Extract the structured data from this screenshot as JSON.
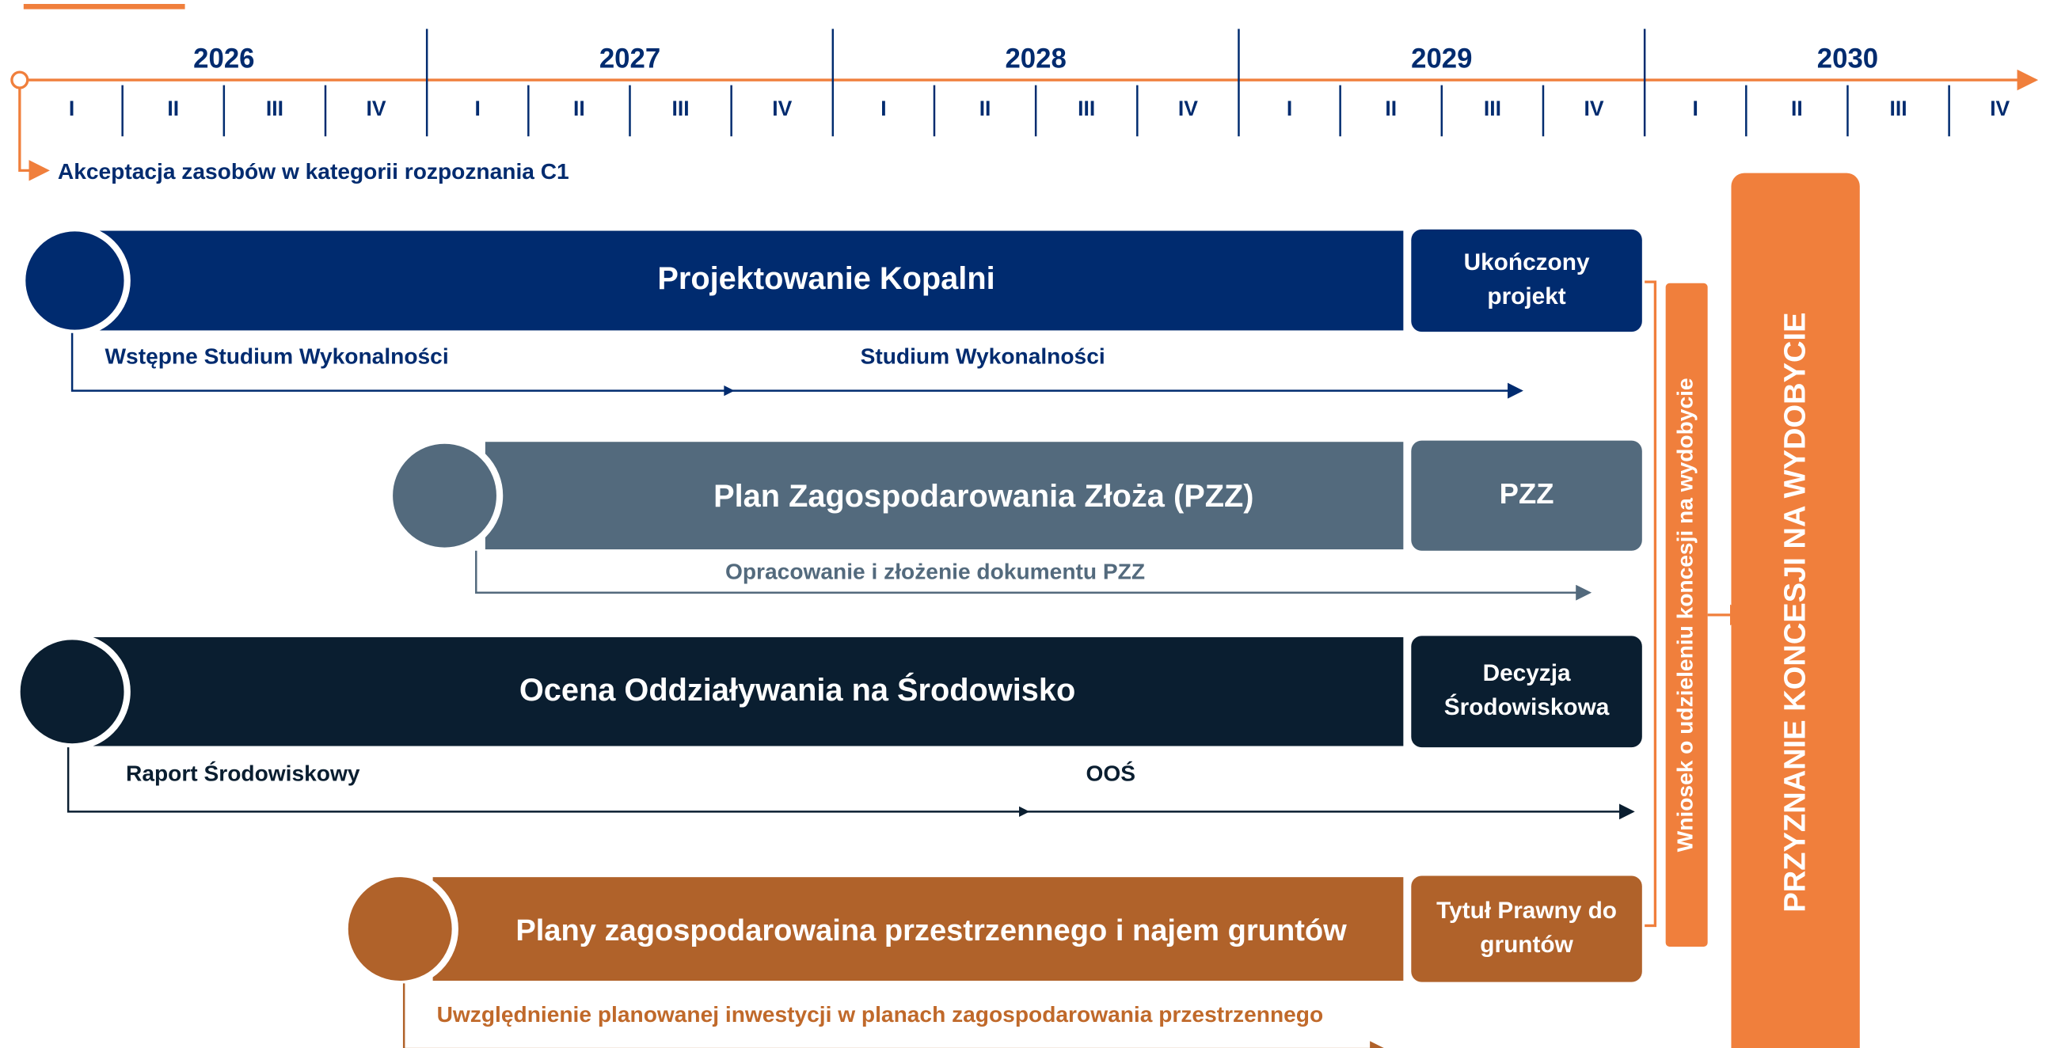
{
  "timeline": {
    "years": [
      "2026",
      "2027",
      "2028",
      "2029",
      "2030"
    ],
    "quarters": [
      "I",
      "II",
      "III",
      "IV"
    ],
    "start_label": "Akceptacja zasobów w kategorii rozpoznania C1"
  },
  "rows": [
    {
      "title": "Projektowanie Kopalni",
      "result": [
        "Ukończony",
        "projekt"
      ],
      "steps": [
        "Wstępne Studium Wykonalności",
        "Studium Wykonalności"
      ]
    },
    {
      "title": "Plan Zagospodarowania Złoża (PZZ)",
      "result": [
        "PZZ"
      ],
      "steps": [
        "Opracowanie i złożenie dokumentu PZZ"
      ]
    },
    {
      "title": "Ocena Oddziaływania na Środowisko",
      "result": [
        "Decyzja",
        "Środowiskowa"
      ],
      "steps": [
        "Raport Środowiskowy",
        "OOŚ"
      ]
    },
    {
      "title": "Plany zagospodarowaina przestrzennego i najem gruntów",
      "result": [
        "Tytuł Prawny do",
        "gruntów"
      ],
      "steps": [
        "Uwzględnienie planowanej inwestycji w planach zagospodarowania przestrzennego"
      ]
    }
  ],
  "application": "Wniosek o udzieleniu koncesji na wydobycie",
  "grant": "PRZYZNANIE KONCESJI NA WYDOBYCIE"
}
